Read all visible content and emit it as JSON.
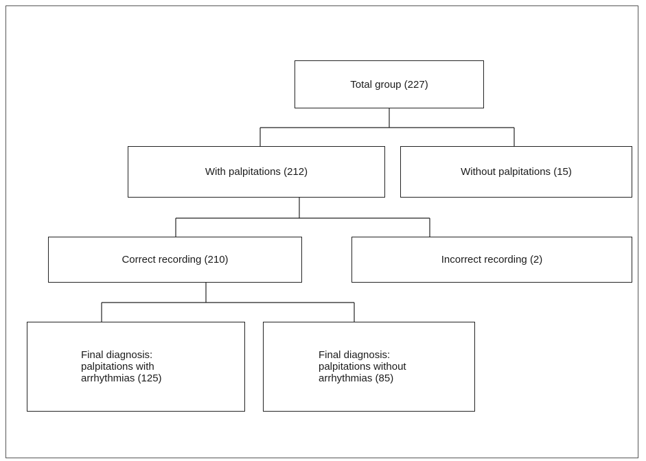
{
  "nodes": {
    "total": "Total group (227)",
    "with_palpitations": "With palpitations (212)",
    "without_palpitations": "Without palpitations (15)",
    "correct_recording": "Correct recording (210)",
    "incorrect_recording": "Incorrect recording (2)",
    "final_with_arrhythmias": {
      "line1": "Final diagnosis:",
      "line2": "palpitations with",
      "line3": "arrhythmias (125)"
    },
    "final_without_arrhythmias": {
      "line1": "Final diagnosis:",
      "line2": "palpitations without",
      "line3": "arrhythmias (85)"
    }
  }
}
